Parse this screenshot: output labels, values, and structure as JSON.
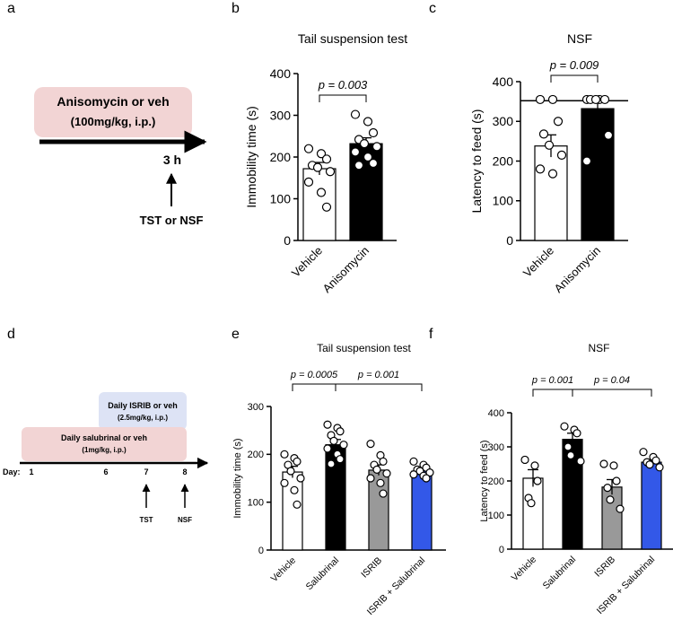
{
  "colors": {
    "black": "#000000",
    "white": "#ffffff",
    "gray": "#999999",
    "blue": "#3358e8",
    "pink": "#f2d4d4",
    "lightblue": "#dde3f5"
  },
  "panels": {
    "a": {
      "letter": "a",
      "box_line1": "Anisomycin or veh",
      "box_line2": "(100mg/kg, i.p.)",
      "time": "3 h",
      "test": "TST or NSF"
    },
    "d": {
      "letter": "d",
      "isrib_line1": "Daily ISRIB or veh",
      "isrib_line2": "(2.5mg/kg, i.p.)",
      "sal_line1": "Daily salubrinal or veh",
      "sal_line2": "(1mg/kg, i.p.)",
      "day_label": "Day:",
      "days": [
        "1",
        "6",
        "7",
        "8"
      ],
      "tests": [
        "TST",
        "NSF"
      ]
    }
  },
  "chart_data": [
    {
      "panel": "b",
      "type": "bar",
      "title": "Tail suspension test",
      "ylabel": "Immobility time (s)",
      "xlabel": "",
      "ylim": [
        0,
        400
      ],
      "yticks": [
        0,
        100,
        200,
        300,
        400
      ],
      "categories": [
        "Vehicle",
        "Anisomycin"
      ],
      "values": [
        172,
        232
      ],
      "errors": [
        15,
        14
      ],
      "fills": [
        "#ffffff",
        "#000000"
      ],
      "points": [
        [
          220,
          208,
          195,
          180,
          175,
          165,
          140,
          115,
          80
        ],
        [
          302,
          285,
          258,
          242,
          232,
          225,
          212,
          200,
          185,
          180
        ]
      ],
      "comparisons": [
        {
          "from": 0,
          "to": 1,
          "label": "p = 0.003"
        }
      ]
    },
    {
      "panel": "c",
      "type": "bar",
      "title": "NSF",
      "ylabel": "Latency to feed (s)",
      "xlabel": "",
      "ylim": [
        0,
        400
      ],
      "yticks": [
        0,
        100,
        200,
        300,
        400
      ],
      "categories": [
        "Vehicle",
        "Anisomycin"
      ],
      "values": [
        238,
        332
      ],
      "errors": [
        28,
        20
      ],
      "fills": [
        "#ffffff",
        "#000000"
      ],
      "points": [
        [
          355,
          355,
          300,
          268,
          240,
          215,
          180,
          168
        ],
        [
          355,
          355,
          355,
          355,
          355,
          265,
          200
        ]
      ],
      "cutoff": 352,
      "comparisons": [
        {
          "from": 0,
          "to": 1,
          "label": "p = 0.009"
        }
      ]
    },
    {
      "panel": "e",
      "type": "bar",
      "title": "Tail suspension test",
      "ylabel": "Immobility time (s)",
      "xlabel": "",
      "ylim": [
        0,
        300
      ],
      "yticks": [
        0,
        100,
        200,
        300
      ],
      "categories": [
        "Vehicle",
        "Salubrinal",
        "ISRIB",
        "ISRIB + Salubrinal"
      ],
      "values": [
        163,
        220,
        167,
        165
      ],
      "errors": [
        12,
        11,
        11,
        5
      ],
      "fills": [
        "#ffffff",
        "#000000",
        "#999999",
        "#3358e8"
      ],
      "points": [
        [
          200,
          192,
          185,
          178,
          165,
          150,
          140,
          125,
          95
        ],
        [
          262,
          255,
          248,
          240,
          228,
          220,
          212,
          200,
          190,
          180
        ],
        [
          222,
          198,
          185,
          178,
          168,
          160,
          150,
          140,
          118
        ],
        [
          185,
          178,
          172,
          168,
          165,
          162,
          158,
          155,
          150
        ]
      ],
      "comparisons": [
        {
          "from": 0,
          "to": 1,
          "label": "p = 0.0005"
        },
        {
          "from": 1,
          "to": 3,
          "label": "p = 0.001"
        }
      ]
    },
    {
      "panel": "f",
      "type": "bar",
      "title": "NSF",
      "ylabel": "Latency to feed (s)",
      "xlabel": "",
      "ylim": [
        0,
        400
      ],
      "yticks": [
        0,
        100,
        200,
        300,
        400
      ],
      "categories": [
        "Vehicle",
        "Salubrinal",
        "ISRIB",
        "ISRIB + Salubrinal"
      ],
      "values": [
        208,
        322,
        182,
        255
      ],
      "errors": [
        25,
        18,
        22,
        8
      ],
      "fills": [
        "#ffffff",
        "#000000",
        "#999999",
        "#3358e8"
      ],
      "points": [
        [
          262,
          245,
          200,
          150,
          135
        ],
        [
          360,
          350,
          340,
          300,
          275,
          258
        ],
        [
          250,
          245,
          200,
          180,
          145,
          118
        ],
        [
          285,
          270,
          260,
          255,
          248,
          240
        ]
      ],
      "comparisons": [
        {
          "from": 0,
          "to": 1,
          "label": "p = 0.001"
        },
        {
          "from": 1,
          "to": 3,
          "label": "p = 0.04"
        }
      ]
    }
  ]
}
